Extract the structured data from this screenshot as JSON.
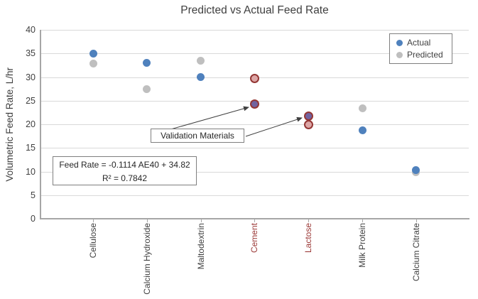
{
  "title": "Predicted vs Actual Feed Rate",
  "y_axis": {
    "label": "Volumetric Feed Rate, L/hr"
  },
  "legend": {
    "items": [
      {
        "label": "Actual",
        "color": "#4F81BD"
      },
      {
        "label": "Predicted",
        "color": "#BFBFBF"
      }
    ]
  },
  "annotations": {
    "validation_label": "Validation Materials",
    "equation_line1": "Feed Rate = -0.1114 AE40 + 34.82",
    "equation_line2": "R² = 0.7842"
  },
  "colors": {
    "actual": "#4F81BD",
    "predicted": "#BFBFBF",
    "validation_actual_fill": "#7163A0",
    "validation_predicted_fill": "#DCA6A6",
    "validation_border": "#943634",
    "validation_category_label": "#9C3A38",
    "axis_line": "#A6A6A6",
    "gridline": "#D9D9D9",
    "text": "#404040"
  },
  "chart_data": {
    "type": "scatter",
    "categories": [
      {
        "name": "Cellulose",
        "validation": false
      },
      {
        "name": "Calcium Hydroxide",
        "validation": false
      },
      {
        "name": "Maltodextrin",
        "validation": false
      },
      {
        "name": "Cement",
        "validation": true
      },
      {
        "name": "Lactose",
        "validation": true
      },
      {
        "name": "Milk Protein",
        "validation": false
      },
      {
        "name": "Calcium Citrate",
        "validation": false
      }
    ],
    "series": [
      {
        "name": "Actual",
        "values": [
          35.0,
          33.0,
          30.0,
          24.3,
          21.7,
          18.7,
          10.3
        ]
      },
      {
        "name": "Predicted",
        "values": [
          32.8,
          27.5,
          33.4,
          29.7,
          20.0,
          23.4,
          9.8
        ]
      }
    ],
    "title": "Predicted vs Actual Feed Rate",
    "xlabel": "",
    "ylabel": "Volumetric Feed Rate, L/hr",
    "ylim": [
      0,
      40
    ],
    "ytick_step": 5,
    "grid": true,
    "legend_position": "top-right",
    "notes": "Cement and Lactose are validation materials shown with red-outlined markers (purple fill = actual, pink fill = predicted)"
  }
}
